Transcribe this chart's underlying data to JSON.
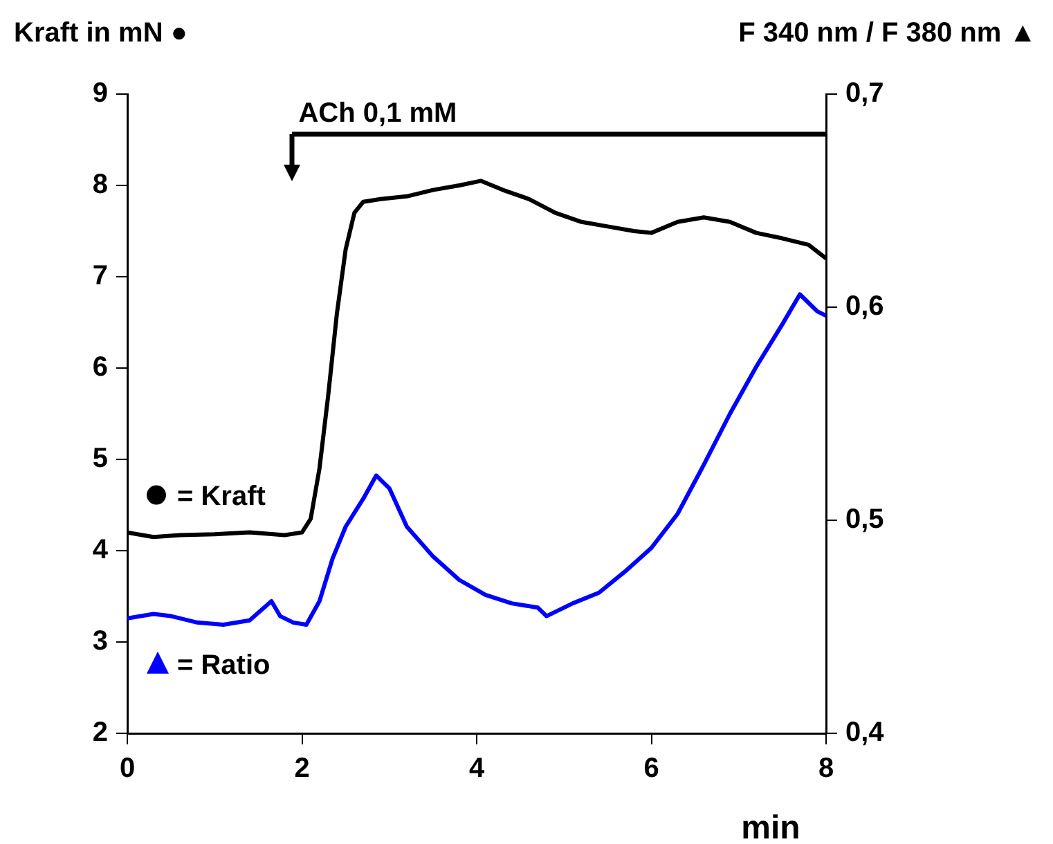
{
  "chart_data": {
    "type": "line",
    "ylabel": "Kraft in mN ●",
    "y2label": "F 340 nm / F 380 nm ▲",
    "xlabel": "min",
    "annotations": [
      "ACh 0,1 mM"
    ],
    "xlim": [
      0,
      8
    ],
    "xticks": [
      0,
      2,
      4,
      6,
      8
    ],
    "ylim": [
      2,
      9
    ],
    "yticks": [
      2,
      3,
      4,
      5,
      6,
      7,
      8,
      9
    ],
    "y2lim": [
      0.4,
      0.7
    ],
    "y2ticks": [
      {
        "value": 0.4,
        "label": "0,4"
      },
      {
        "value": 0.5,
        "label": "0,5"
      },
      {
        "value": 0.6,
        "label": "0,6"
      },
      {
        "value": 0.7,
        "label": "0,7"
      }
    ],
    "grid": false,
    "legend": "left",
    "marker": "none",
    "line_style": "solid",
    "series": [
      {
        "name": "= Kraft",
        "color": "#000000",
        "x": [
          0,
          0.3,
          0.6,
          1.0,
          1.4,
          1.8,
          2.0,
          2.1,
          2.2,
          2.3,
          2.4,
          2.5,
          2.6,
          2.7,
          2.9,
          3.2,
          3.5,
          3.8,
          4.05,
          4.3,
          4.6,
          4.9,
          5.2,
          5.5,
          5.8,
          6.0,
          6.3,
          6.6,
          6.9,
          7.2,
          7.5,
          7.8,
          8.0
        ],
        "values": [
          4.2,
          4.15,
          4.17,
          4.18,
          4.2,
          4.17,
          4.2,
          4.35,
          4.9,
          5.7,
          6.6,
          7.3,
          7.7,
          7.82,
          7.85,
          7.88,
          7.95,
          8.0,
          8.05,
          7.95,
          7.85,
          7.7,
          7.6,
          7.55,
          7.5,
          7.48,
          7.6,
          7.65,
          7.6,
          7.48,
          7.42,
          7.35,
          7.2
        ]
      },
      {
        "name": "= Ratio",
        "color": "#0000ff",
        "axis": "y2",
        "x": [
          0,
          0.3,
          0.5,
          0.8,
          1.1,
          1.4,
          1.65,
          1.75,
          1.9,
          2.05,
          2.2,
          2.35,
          2.5,
          2.7,
          2.85,
          3.0,
          3.2,
          3.5,
          3.8,
          4.1,
          4.4,
          4.7,
          4.8,
          5.1,
          5.4,
          5.7,
          6.0,
          6.3,
          6.6,
          6.9,
          7.2,
          7.5,
          7.7,
          7.9,
          8.0
        ],
        "values": [
          0.454,
          0.456,
          0.455,
          0.452,
          0.451,
          0.453,
          0.462,
          0.455,
          0.452,
          0.451,
          0.462,
          0.482,
          0.497,
          0.51,
          0.521,
          0.515,
          0.497,
          0.483,
          0.472,
          0.465,
          0.461,
          0.459,
          0.455,
          0.461,
          0.466,
          0.476,
          0.487,
          0.503,
          0.526,
          0.55,
          0.572,
          0.592,
          0.606,
          0.598,
          0.596
        ]
      }
    ]
  }
}
